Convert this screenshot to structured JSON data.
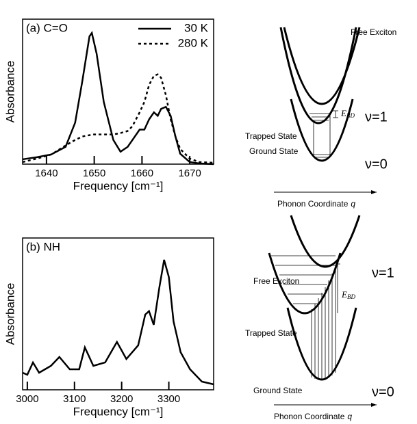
{
  "chart_data": [
    {
      "type": "line",
      "label": "(a) C=O",
      "ylabel": "Absorbance",
      "xlabel": "Frequency [cm⁻¹]",
      "x": [
        1635,
        1638,
        1641,
        1644,
        1646,
        1647.5,
        1649,
        1649.5,
        1650.5,
        1652,
        1654,
        1655.5,
        1657,
        1658,
        1659.5,
        1660.5,
        1661.5,
        1662.5,
        1663.3,
        1664,
        1665,
        1666,
        1667,
        1668,
        1670,
        1672,
        1675
      ],
      "series": [
        {
          "name": "30 K",
          "color": "#000000",
          "dash": "solid",
          "values": [
            7,
            10,
            14,
            25,
            60,
            120,
            185,
            190,
            160,
            90,
            35,
            18,
            25,
            35,
            50,
            50,
            65,
            75,
            70,
            80,
            83,
            70,
            40,
            15,
            3,
            1,
            0
          ]
        },
        {
          "name": "280 K",
          "color": "#000000",
          "dash": "dotted",
          "values": [
            3,
            8,
            14,
            27,
            35,
            40,
            42,
            43,
            43,
            43,
            43,
            45,
            48,
            55,
            75,
            90,
            115,
            128,
            130,
            125,
            100,
            65,
            40,
            22,
            8,
            3,
            2
          ]
        }
      ],
      "xlim": [
        1635,
        1675
      ],
      "xticks": [
        1640,
        1650,
        1660,
        1670
      ],
      "ylim": [
        0,
        210
      ],
      "legend": "upper right"
    },
    {
      "type": "line",
      "label": "(b) NH",
      "ylabel": "Absorbance",
      "xlabel": "Frequency [cm⁻¹]",
      "x": [
        2990,
        3000,
        3012,
        3025,
        3050,
        3068,
        3090,
        3110,
        3122,
        3140,
        3165,
        3190,
        3210,
        3235,
        3250,
        3258,
        3268,
        3280,
        3290,
        3300,
        3310,
        3325,
        3345,
        3370,
        3395
      ],
      "values": [
        25,
        22,
        40,
        25,
        35,
        48,
        30,
        30,
        62,
        35,
        40,
        70,
        45,
        65,
        110,
        115,
        95,
        150,
        190,
        165,
        100,
        55,
        30,
        12,
        8
      ],
      "color": "#000000",
      "xlim": [
        2990,
        3395
      ],
      "xticks": [
        3000,
        3100,
        3200,
        3300
      ],
      "ylim": [
        0,
        222
      ]
    }
  ],
  "diagrams": [
    {
      "free": "Free Exciton",
      "trapped": "Trapped State",
      "ground": "Ground State",
      "upper": "ν=1",
      "lower": "ν=0",
      "energy": "E",
      "energy_sub": "BD",
      "axis": "Phonon Coordinate",
      "axis_symbol": "q"
    },
    {
      "free": "Free Exciton",
      "trapped": "Trapped State",
      "ground": "Ground State",
      "upper": "ν=1",
      "lower": "ν=0",
      "energy": "E",
      "energy_sub": "BD",
      "axis": "Phonon Coordinate",
      "axis_symbol": "q"
    }
  ]
}
